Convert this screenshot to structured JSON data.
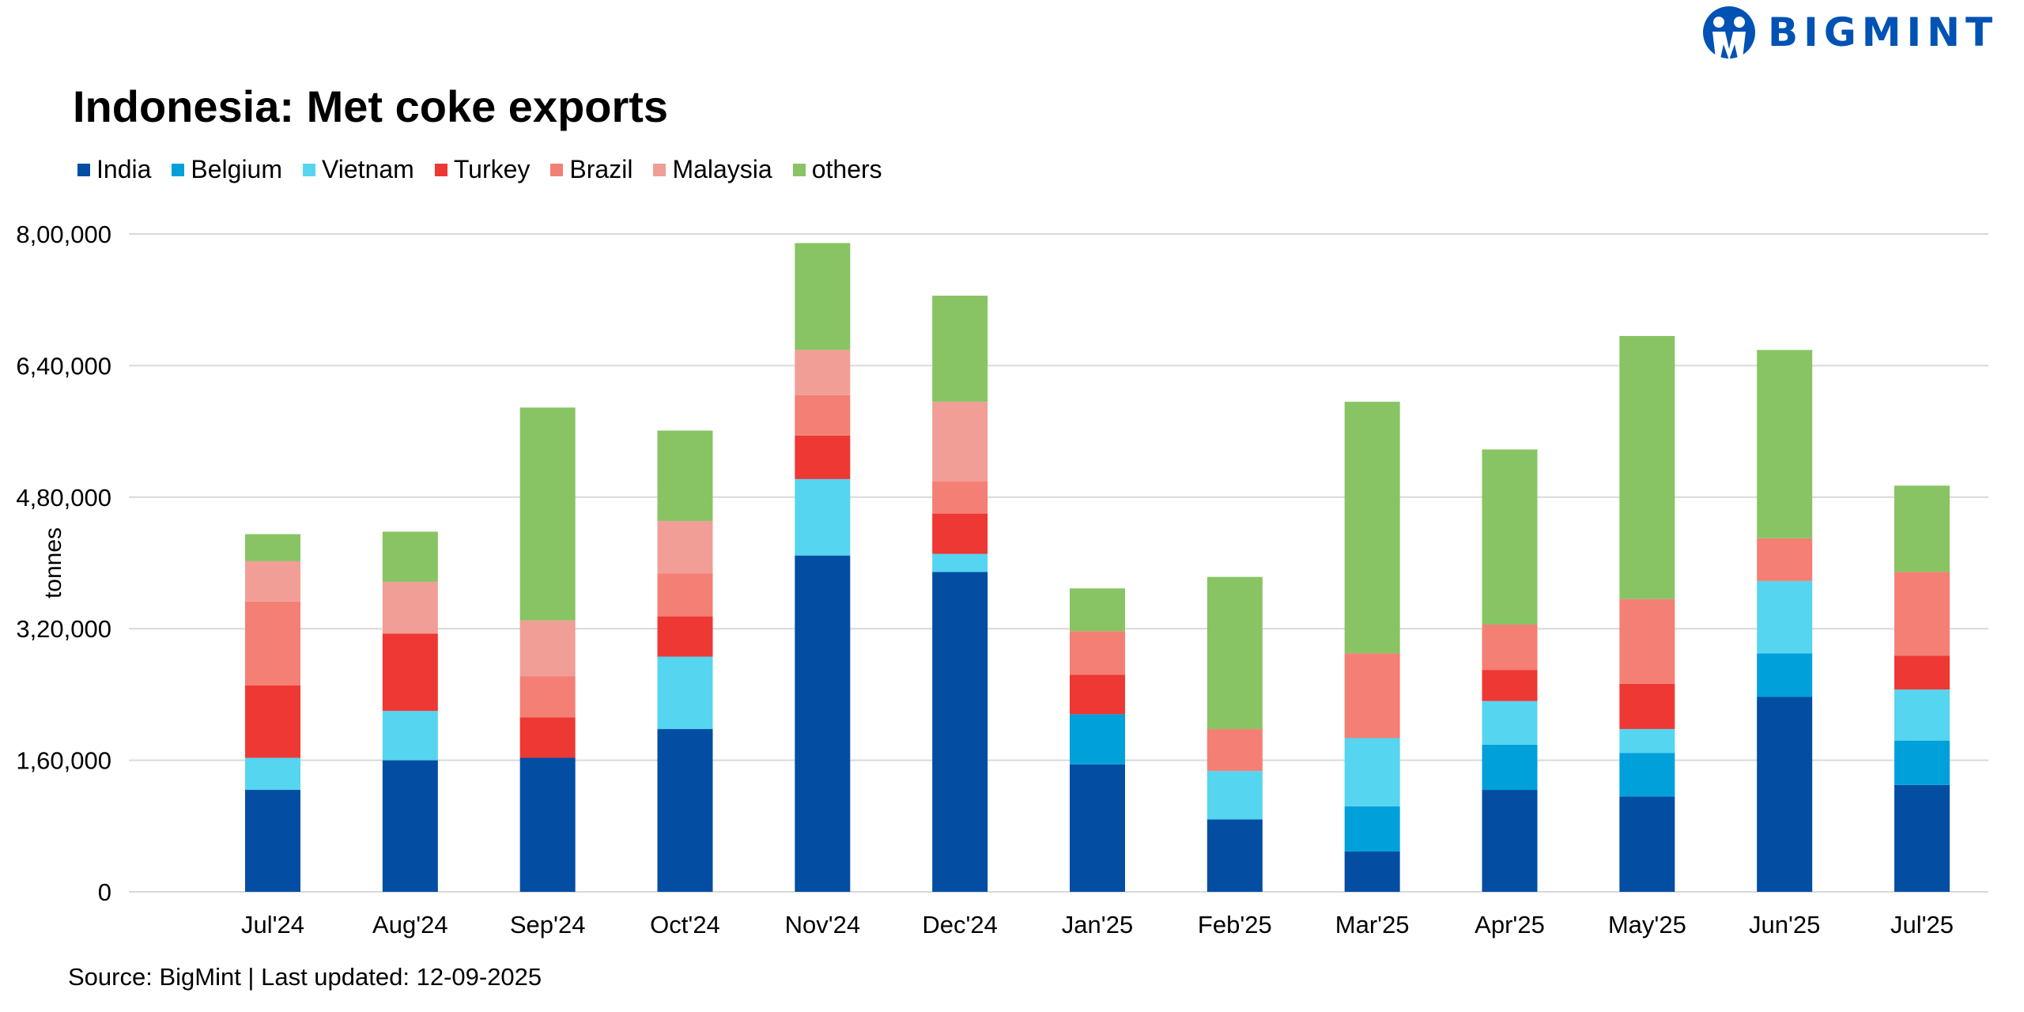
{
  "logo": {
    "text": "BIGMINT",
    "color": "#0052B4"
  },
  "source": "Source: BigMint | Last updated: 12-09-2025",
  "chart_data": {
    "type": "bar",
    "stacked": true,
    "title": "Indonesia: Met coke exports",
    "xlabel": "",
    "ylabel": "tonnes",
    "ylim": [
      0,
      800000
    ],
    "yticks": [
      0,
      160000,
      320000,
      480000,
      640000,
      800000
    ],
    "ytick_labels": [
      "0",
      "1,60,000",
      "3,20,000",
      "4,80,000",
      "6,40,000",
      "8,00,000"
    ],
    "grid": true,
    "legend_position": "top-left",
    "categories": [
      "Jul'24",
      "Aug'24",
      "Sep'24",
      "Oct'24",
      "Nov'24",
      "Dec'24",
      "Jan'25",
      "Feb'25",
      "Mar'25",
      "Apr'25",
      "May'25",
      "Jun'25",
      "Jul'25"
    ],
    "series": [
      {
        "name": "India",
        "color": "#034EA2",
        "values": [
          124000,
          160000,
          163000,
          198000,
          409000,
          389000,
          155000,
          88000,
          49000,
          124000,
          116000,
          237000,
          130000
        ]
      },
      {
        "name": "Belgium",
        "color": "#00A0DB",
        "values": [
          0,
          0,
          0,
          0,
          0,
          0,
          61000,
          0,
          55000,
          55000,
          53000,
          53000,
          54000
        ]
      },
      {
        "name": "Vietnam",
        "color": "#55D5F0",
        "values": [
          39000,
          60000,
          0,
          88000,
          93000,
          22000,
          0,
          59000,
          83000,
          53000,
          29000,
          88000,
          62000
        ]
      },
      {
        "name": "Turkey",
        "color": "#EE3834",
        "values": [
          88000,
          94000,
          49000,
          49000,
          53000,
          49000,
          48000,
          0,
          0,
          38000,
          55000,
          0,
          41000
        ]
      },
      {
        "name": "Brazil",
        "color": "#F47F74",
        "values": [
          102000,
          0,
          50000,
          52000,
          49000,
          39000,
          53000,
          51000,
          103000,
          55000,
          103000,
          52000,
          102000
        ]
      },
      {
        "name": "Malaysia",
        "color": "#F19E97",
        "values": [
          49000,
          63000,
          68000,
          64000,
          55000,
          97000,
          0,
          0,
          0,
          0,
          0,
          0,
          0
        ]
      },
      {
        "name": "others",
        "color": "#88C464",
        "values": [
          33000,
          61000,
          259000,
          110000,
          130000,
          129000,
          52000,
          185000,
          306000,
          213000,
          320000,
          229000,
          105000
        ]
      }
    ]
  }
}
